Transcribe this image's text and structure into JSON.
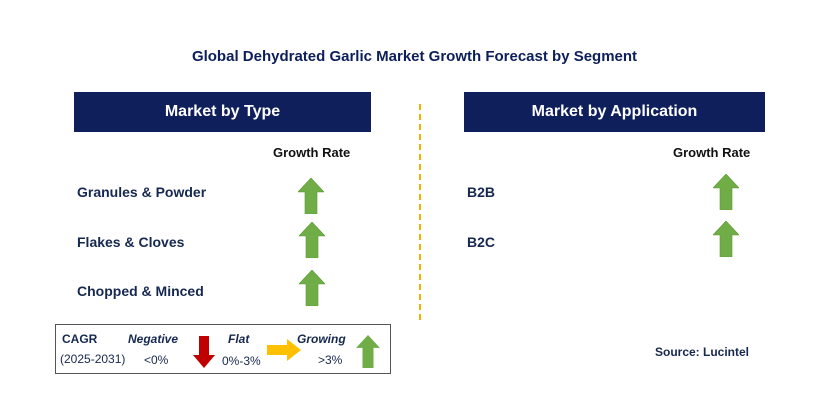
{
  "title": "Global Dehydrated Garlic Market Growth Forecast by Segment",
  "left_panel": {
    "header": "Market by Type",
    "column_head": "Growth Rate",
    "rows": [
      {
        "label": "Granules & Powder",
        "trend": "growing"
      },
      {
        "label": "Flakes & Cloves",
        "trend": "growing"
      },
      {
        "label": "Chopped & Minced",
        "trend": "growing"
      }
    ]
  },
  "right_panel": {
    "header": "Market by Application",
    "column_head": "Growth Rate",
    "rows": [
      {
        "label": "B2B",
        "trend": "growing"
      },
      {
        "label": "B2C",
        "trend": "growing"
      }
    ]
  },
  "legend": {
    "cagr_label": "CAGR",
    "period": "(2025-2031)",
    "negative": {
      "label": "Negative",
      "range": "<0%",
      "icon": "red-down-arrow-icon",
      "color": "#c00000"
    },
    "flat": {
      "label": "Flat",
      "range": "0%-3%",
      "icon": "yellow-right-arrow-icon",
      "color": "#ffc000"
    },
    "growing": {
      "label": "Growing",
      "range": ">3%",
      "icon": "green-up-arrow-icon",
      "color": "#70ad47"
    }
  },
  "source": "Source: Lucintel",
  "colors": {
    "header_bg": "#0e1f5b",
    "divider": "#f0b400",
    "growth_arrow": "#70ad47"
  }
}
